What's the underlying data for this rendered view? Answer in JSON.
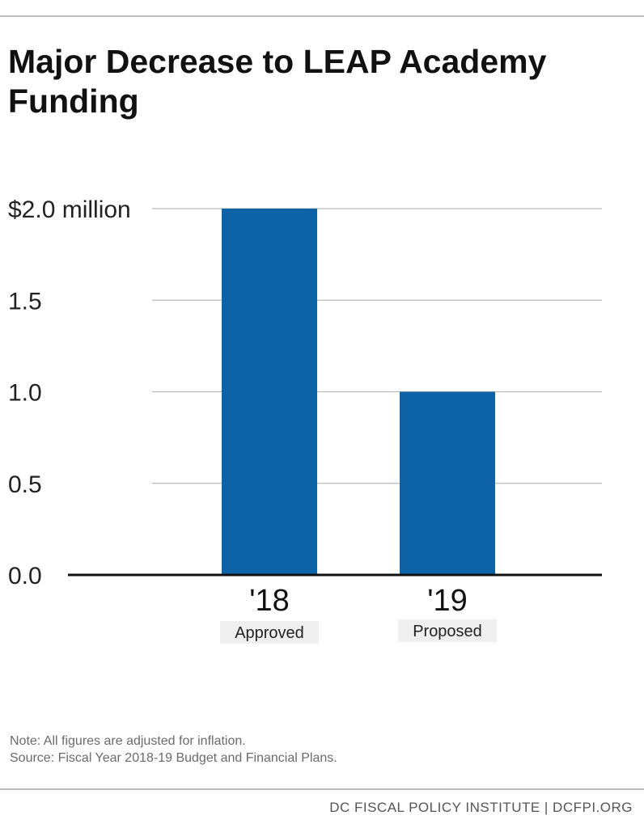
{
  "title": "Major Decrease to LEAP Academy Funding",
  "chart_data": {
    "type": "bar",
    "categories": [
      "'18",
      "'19"
    ],
    "category_sublabels": [
      "Approved",
      "Proposed"
    ],
    "values": [
      2.0,
      1.0
    ],
    "ylim": [
      0,
      2.0
    ],
    "yticks": [
      0.0,
      0.5,
      1.0,
      1.5,
      2.0
    ],
    "ytick_labels": [
      "0.0",
      "0.5",
      "1.0",
      "1.5",
      "$2.0 million"
    ],
    "grid": true,
    "bar_color": "#0e62a6",
    "grid_color": "#bbbbbb",
    "axis_color": "#111111",
    "sublabel_bg_color": "#efefef"
  },
  "notes": {
    "line1": "Note: All figures are adjusted for inflation.",
    "line2": "Source: Fiscal Year 2018-19 Budget and Financial Plans."
  },
  "footer": "DC FISCAL POLICY INSTITUTE | DCFPI.ORG"
}
